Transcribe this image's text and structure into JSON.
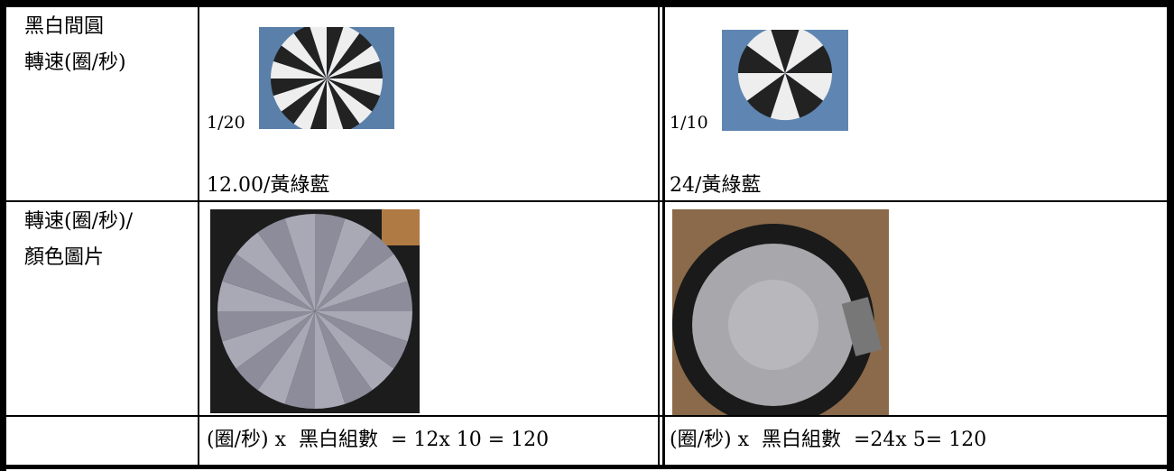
{
  "table": {
    "rows": [
      {
        "label": [
          "黑白間圓",
          "轉速(圈/秒)"
        ],
        "left": "1/20",
        "right": "1/10"
      },
      {
        "label": [
          "轉速(圈/秒)/",
          "顏色圖片"
        ],
        "left": "12.00/黃綠藍",
        "right": "24/黃綠藍"
      },
      {
        "left": "(圈/秒) x  黑白組數  = 12x 10 = 120",
        "right": "(圈/秒) x  黑白組數  =24x 5= 120"
      }
    ]
  }
}
